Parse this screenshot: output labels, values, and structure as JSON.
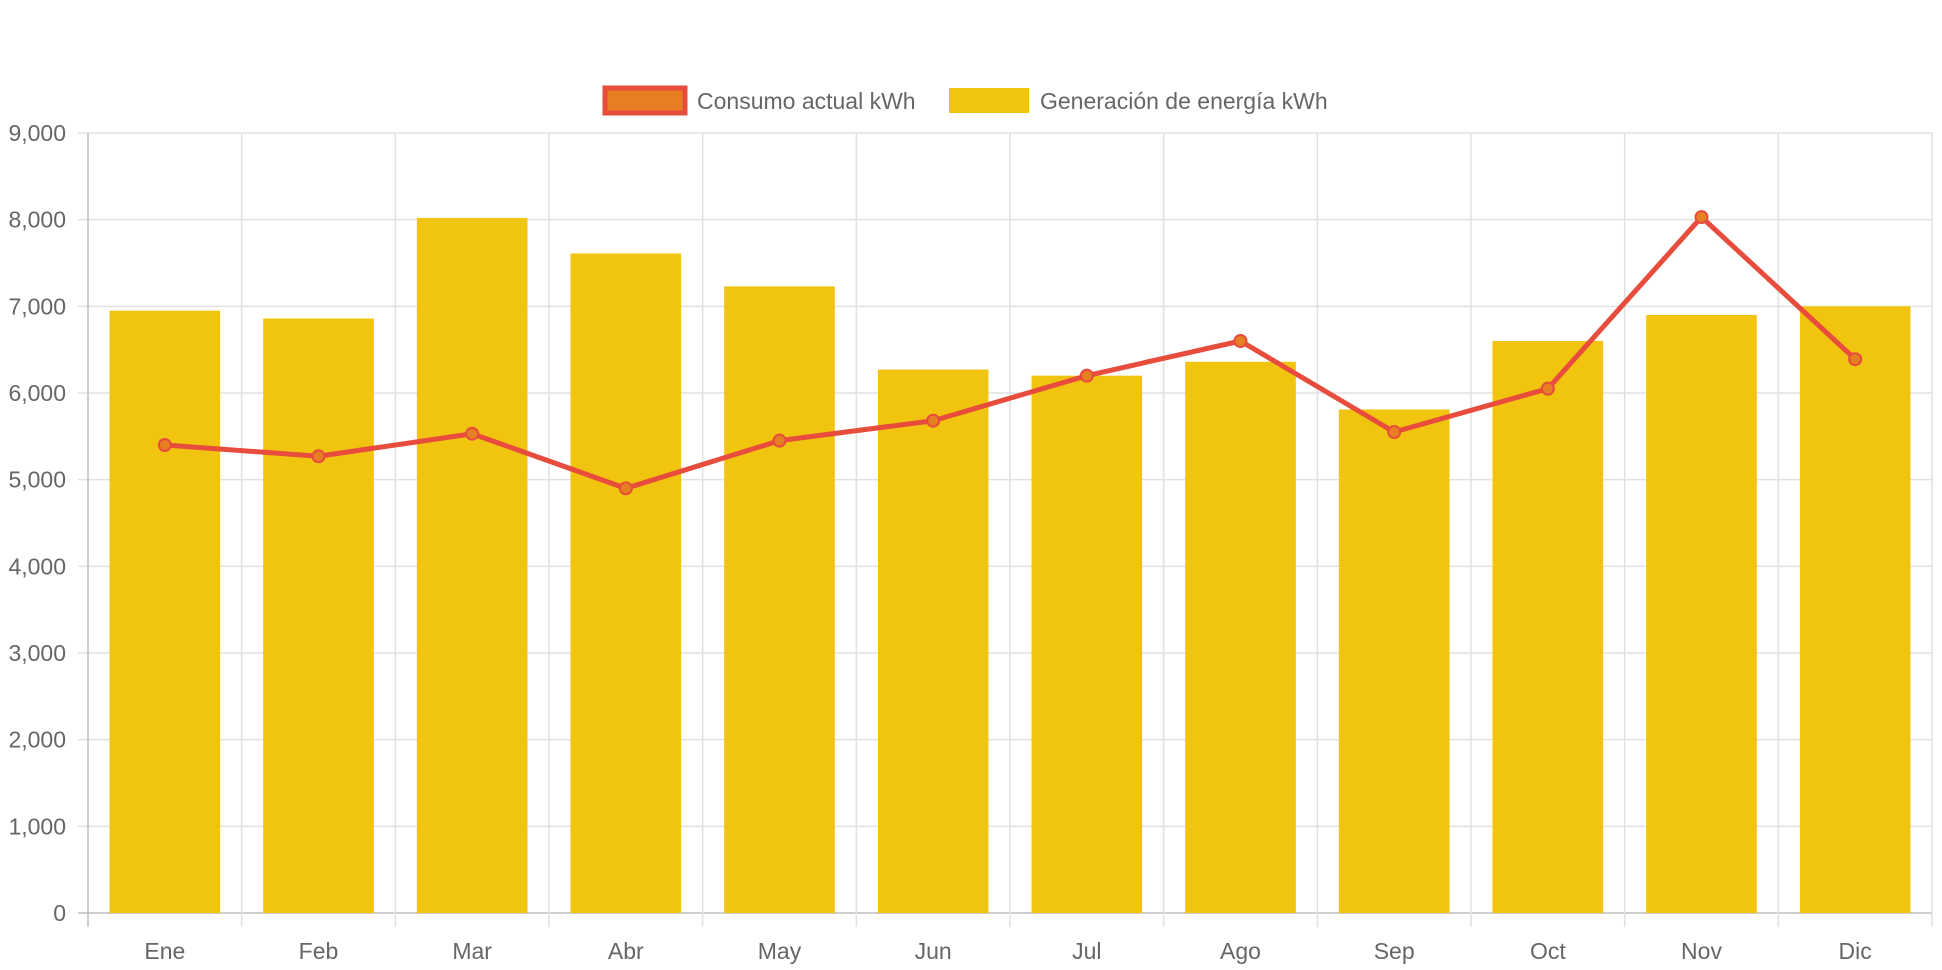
{
  "chart_data": {
    "type": "bar",
    "title": "",
    "xlabel": "",
    "ylabel": "",
    "categories": [
      "Ene",
      "Feb",
      "Mar",
      "Abr",
      "May",
      "Jun",
      "Jul",
      "Ago",
      "Sep",
      "Oct",
      "Nov",
      "Dic"
    ],
    "ylim": [
      0,
      9000
    ],
    "y_ticks": [
      "0",
      "1,000",
      "2,000",
      "3,000",
      "4,000",
      "5,000",
      "6,000",
      "7,000",
      "8,000",
      "9,000"
    ],
    "grid": true,
    "legend_position": "top",
    "series": [
      {
        "name": "Consumo actual kWh",
        "type": "line",
        "color": "#e74c3c",
        "point_fill": "#e67e22",
        "values": [
          5400,
          5270,
          5530,
          4900,
          5450,
          5680,
          6200,
          6600,
          5550,
          6050,
          8030,
          6390
        ]
      },
      {
        "name": "Generación de energía kWh",
        "type": "bar",
        "color": "#f1c40f",
        "values": [
          6950,
          6860,
          8020,
          7610,
          7230,
          6270,
          6200,
          6360,
          5810,
          6600,
          6900,
          7000
        ]
      }
    ]
  }
}
